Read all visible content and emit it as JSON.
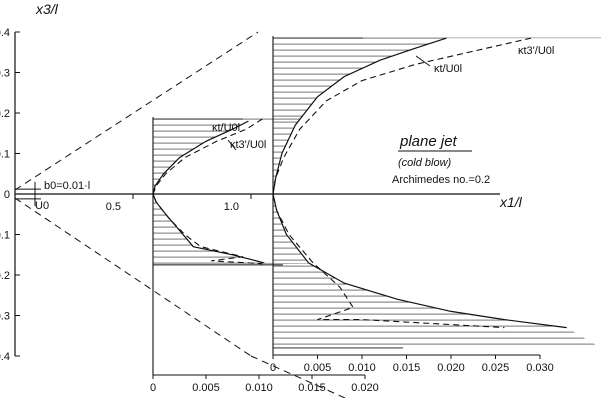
{
  "chart_data": {
    "type": "line",
    "title": "plane jet",
    "subtitle": "(cold blow)",
    "note": "Archimedes no.=0.2",
    "xlabel": "x1/l",
    "ylabel": "x3/l",
    "nozzle_label": "b0=0.01·l",
    "nozzle_velocity_label": "U0",
    "xlim": [
      0,
      1.62
    ],
    "ylim": [
      -0.4,
      0.4
    ],
    "x_ticks": [
      "0.5",
      "1.0"
    ],
    "y_ticks": [
      "0.4",
      "0.3",
      "0.2",
      "0.1",
      "0",
      "-0.1",
      "-0.2",
      "-0.3",
      "-0.4"
    ],
    "y_tick_values": [
      0.4,
      0.3,
      0.2,
      0.1,
      0,
      -0.1,
      -0.2,
      -0.3,
      -0.4
    ],
    "jet_boundary_lines": [
      {
        "from": [
          0,
          0.01
        ],
        "to": [
          1.03,
          0.4
        ]
      },
      {
        "from": [
          0,
          -0.01
        ],
        "to": [
          1.0,
          -0.4
        ]
      }
    ],
    "profiles": [
      {
        "station_x": 0.5,
        "kappa_axis_ticks": [
          "0",
          "0.005",
          "0.010",
          "0.015",
          "0.020"
        ],
        "kappa_axis_values": [
          0,
          0.005,
          0.01,
          0.015,
          0.02
        ],
        "y_range": [
          -0.175,
          0.185
        ],
        "series": [
          {
            "name": "κt/U0l",
            "style": "solid",
            "points": [
              [
                0.009,
                0.18
              ],
              [
                0.0075,
                0.16
              ],
              [
                0.005,
                0.13
              ],
              [
                0.0025,
                0.09
              ],
              [
                0.001,
                0.05
              ],
              [
                0.0002,
                0.02
              ],
              [
                0,
                0
              ],
              [
                0.0003,
                -0.02
              ],
              [
                0.0012,
                -0.05
              ],
              [
                0.0025,
                -0.09
              ],
              [
                0.0038,
                -0.13
              ],
              [
                0.0075,
                -0.15
              ],
              [
                0.0105,
                -0.17
              ]
            ]
          },
          {
            "name": "κt3'/U0l",
            "style": "dashed",
            "points": [
              [
                0.0103,
                0.185
              ],
              [
                0.0088,
                0.16
              ],
              [
                0.006,
                0.13
              ],
              [
                0.003,
                0.09
              ],
              [
                0.0012,
                0.05
              ],
              [
                0.0003,
                0.02
              ],
              [
                0,
                0
              ],
              [
                0.0003,
                -0.02
              ],
              [
                0.0015,
                -0.06
              ],
              [
                0.003,
                -0.1
              ],
              [
                0.0045,
                -0.13
              ],
              [
                0.0085,
                -0.155
              ],
              [
                0.0055,
                -0.165
              ],
              [
                0.0103,
                -0.172
              ]
            ]
          }
        ]
      },
      {
        "station_x": 1.0,
        "kappa_axis_ticks": [
          "0",
          "0.005",
          "0.010",
          "0.015",
          "0.020",
          "0.025",
          "0.030"
        ],
        "kappa_axis_values": [
          0,
          0.005,
          0.01,
          0.015,
          0.02,
          0.025,
          0.03
        ],
        "y_range": [
          -0.38,
          0.385
        ],
        "series": [
          {
            "name": "κt/U0l",
            "style": "solid",
            "points": [
              [
                0.0195,
                0.385
              ],
              [
                0.016,
                0.36
              ],
              [
                0.012,
                0.33
              ],
              [
                0.008,
                0.29
              ],
              [
                0.005,
                0.24
              ],
              [
                0.0025,
                0.17
              ],
              [
                0.001,
                0.1
              ],
              [
                0.0003,
                0.04
              ],
              [
                0,
                0
              ],
              [
                0.0004,
                -0.04
              ],
              [
                0.0015,
                -0.1
              ],
              [
                0.004,
                -0.17
              ],
              [
                0.008,
                -0.22
              ],
              [
                0.014,
                -0.26
              ],
              [
                0.02,
                -0.29
              ],
              [
                0.026,
                -0.31
              ],
              [
                0.033,
                -0.33
              ]
            ]
          },
          {
            "name": "κt3'/U0l",
            "style": "dashed",
            "points": [
              [
                0.029,
                0.385
              ],
              [
                0.024,
                0.36
              ],
              [
                0.016,
                0.32
              ],
              [
                0.01,
                0.28
              ],
              [
                0.006,
                0.23
              ],
              [
                0.003,
                0.16
              ],
              [
                0.0012,
                0.09
              ],
              [
                0.0003,
                0.04
              ],
              [
                0,
                0
              ],
              [
                0.0004,
                -0.04
              ],
              [
                0.0018,
                -0.1
              ],
              [
                0.0045,
                -0.17
              ],
              [
                0.0075,
                -0.23
              ],
              [
                0.009,
                -0.28
              ],
              [
                0.005,
                -0.31
              ],
              [
                0.01,
                -0.31
              ],
              [
                0.018,
                -0.32
              ],
              [
                0.026,
                -0.33
              ]
            ]
          }
        ]
      }
    ],
    "series_labels": [
      "κt/U0l",
      "κt3'/U0l"
    ]
  }
}
